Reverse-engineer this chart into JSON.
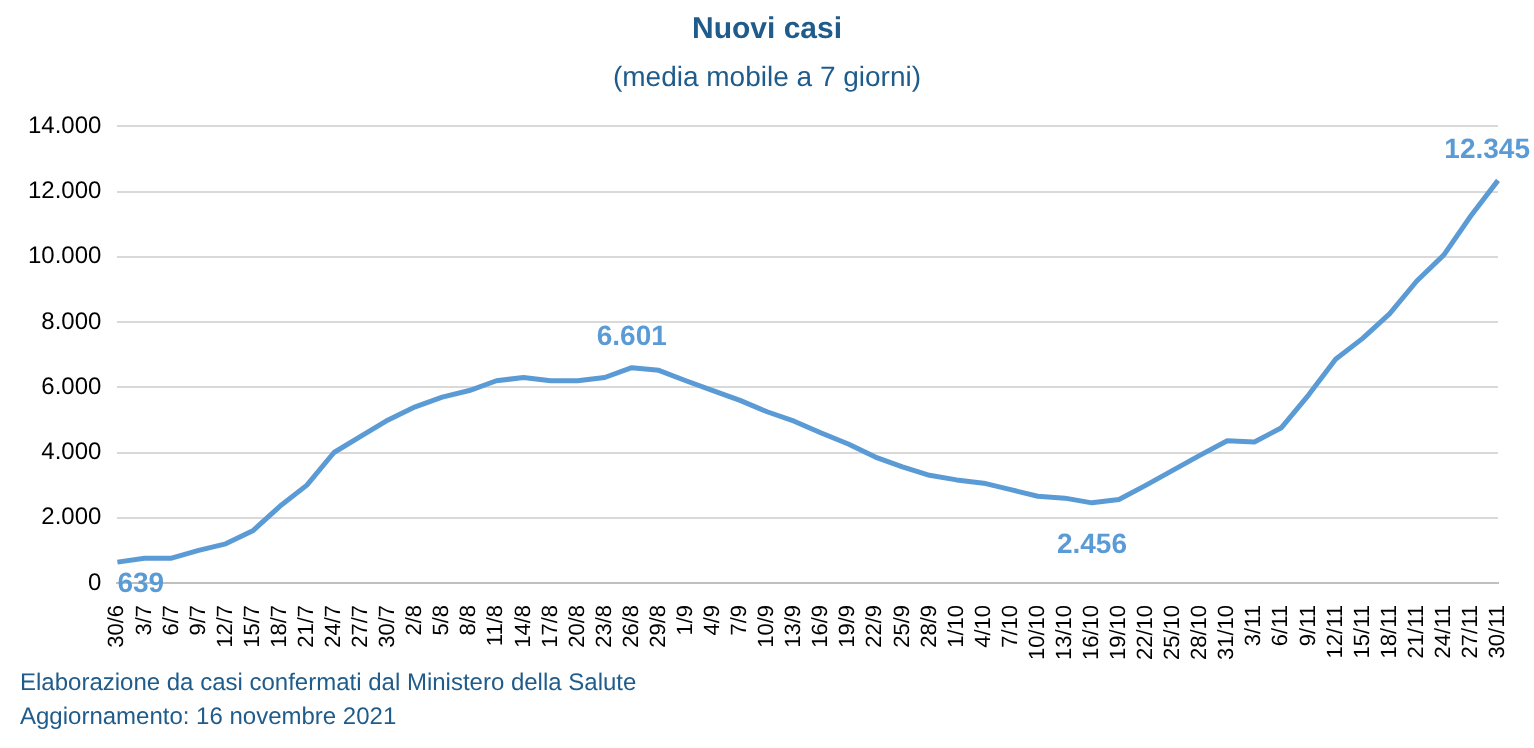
{
  "chart_data": {
    "type": "line",
    "title": "Nuovi casi",
    "subtitle": "(media mobile a 7 giorni)",
    "categories": [
      "30/6",
      "3/7",
      "6/7",
      "9/7",
      "12/7",
      "15/7",
      "18/7",
      "21/7",
      "24/7",
      "27/7",
      "30/7",
      "2/8",
      "5/8",
      "8/8",
      "11/8",
      "14/8",
      "17/8",
      "20/8",
      "23/8",
      "26/8",
      "29/8",
      "1/9",
      "4/9",
      "7/9",
      "10/9",
      "13/9",
      "16/9",
      "19/9",
      "22/9",
      "25/9",
      "28/9",
      "1/10",
      "4/10",
      "7/10",
      "10/10",
      "13/10",
      "16/10",
      "19/10",
      "22/10",
      "25/10",
      "28/10",
      "31/10",
      "3/11",
      "6/11",
      "9/11",
      "12/11",
      "15/11",
      "18/11",
      "21/11",
      "24/11",
      "27/11",
      "30/11"
    ],
    "series": [
      {
        "color": "#5b9bd5",
        "values": [
          639,
          760,
          760,
          1000,
          1200,
          1600,
          2350,
          3000,
          4000,
          4500,
          5000,
          5400,
          5700,
          5900,
          6200,
          6300,
          6200,
          6200,
          6300,
          6601,
          6520,
          6200,
          5900,
          5600,
          5250,
          4960,
          4600,
          4260,
          3860,
          3560,
          3300,
          3160,
          3060,
          2860,
          2660,
          2600,
          2456,
          2560,
          3000,
          3460,
          3920,
          4360,
          4320,
          4760,
          5760,
          6860,
          7500,
          8260,
          9260,
          10060,
          11260,
          12345
        ]
      }
    ],
    "ylim": [
      0,
      14000
    ],
    "yticks": [
      {
        "value": 0,
        "label": "0"
      },
      {
        "value": 2000,
        "label": "2.000"
      },
      {
        "value": 4000,
        "label": "4.000"
      },
      {
        "value": 6000,
        "label": "6.000"
      },
      {
        "value": 8000,
        "label": "8.000"
      },
      {
        "value": 10000,
        "label": "10.000"
      },
      {
        "value": 12000,
        "label": "12.000"
      },
      {
        "value": 14000,
        "label": "14.000"
      }
    ],
    "grid": "y",
    "marker": "none",
    "line_style": "solid",
    "annotations": [
      {
        "text": "639",
        "x": "30/6",
        "y": 639
      },
      {
        "text": "6.601",
        "x": "26/8",
        "y": 6601
      },
      {
        "text": "2.456",
        "x": "16/10",
        "y": 2456
      },
      {
        "text": "12.345",
        "x": "30/11",
        "y": 12345
      },
      "Elaborazione da casi confermati dal Ministero della Salute",
      "Aggiornamento: 16 novembre 2021"
    ]
  }
}
